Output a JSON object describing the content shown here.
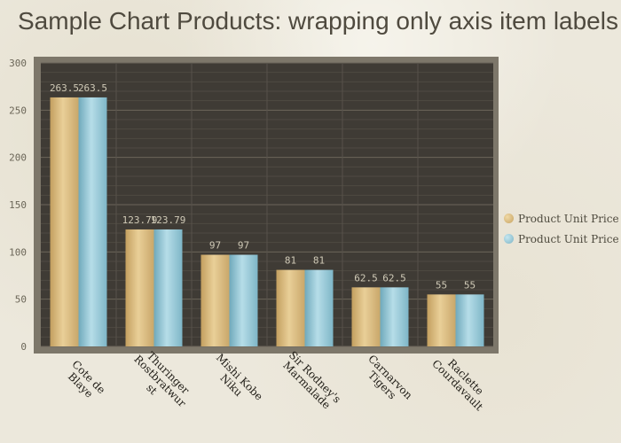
{
  "colors": {
    "series1": "#d9b87a",
    "series2": "#8ec5d6",
    "plot_bg": "#3f3b35",
    "frame": "#7d776a"
  },
  "chart_data": {
    "type": "bar",
    "title": "Sample Chart Products: wrapping only axis item labels",
    "categories": [
      "Cote de Blaye",
      "Thuringer Rostbratwurst",
      "Mishi Kobe Niku",
      "Sir Rodney's Marmalade",
      "Carnarvon Tigers",
      "Raclette Courdavault"
    ],
    "category_lines": [
      [
        "Cote de",
        "Blaye"
      ],
      [
        "Thuringer",
        "Rostbratwur",
        "st"
      ],
      [
        "Mishi Kobe",
        "Niku"
      ],
      [
        "Sir Rodney's",
        "Marmalade"
      ],
      [
        "Carnarvon",
        "Tigers"
      ],
      [
        "Raclette",
        "Courdavault"
      ]
    ],
    "series": [
      {
        "name": "Product Unit Price",
        "values": [
          263.5,
          123.79,
          97,
          81,
          62.5,
          55
        ]
      },
      {
        "name": "Product Unit Price",
        "values": [
          263.5,
          123.79,
          97,
          81,
          62.5,
          55
        ]
      }
    ],
    "ylim": [
      0,
      300
    ],
    "yticks": [
      0,
      50,
      100,
      150,
      200,
      250,
      300
    ],
    "grid": true,
    "legend_position": "right",
    "xlabel": "",
    "ylabel": ""
  }
}
